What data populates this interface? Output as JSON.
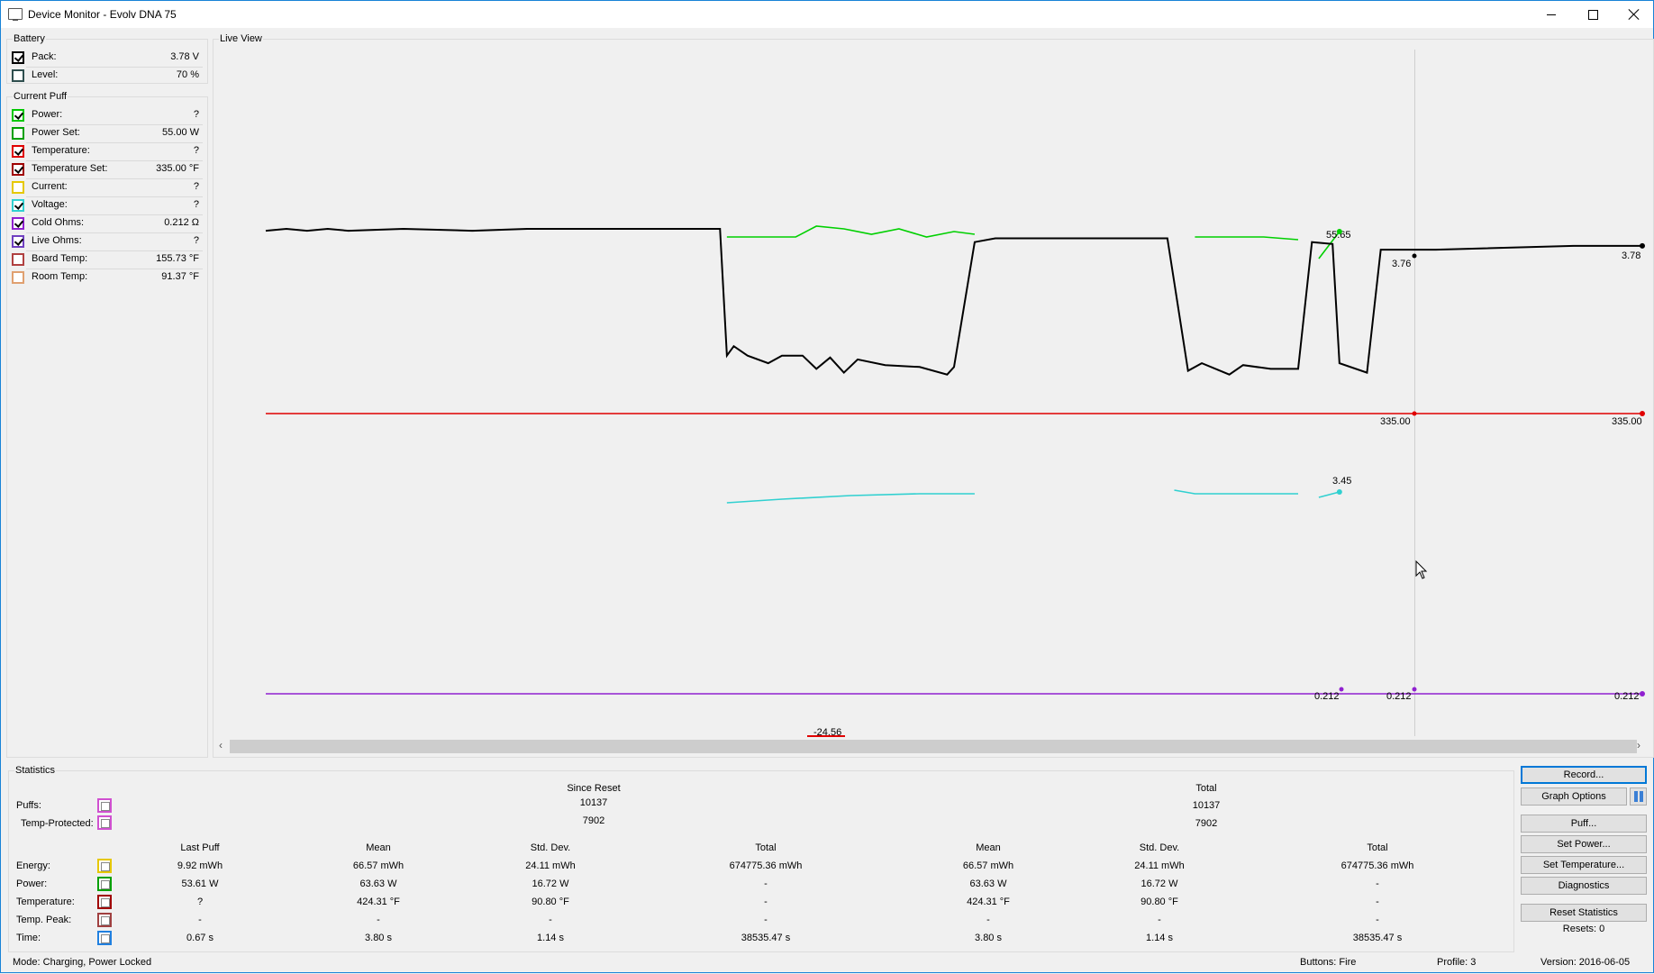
{
  "window": {
    "title": "Device Monitor - Evolv DNA 75"
  },
  "battery": {
    "legend": "Battery",
    "items": [
      {
        "label": "Pack:",
        "value": "3.78 V",
        "checked": true,
        "color": "#000000"
      },
      {
        "label": "Level:",
        "value": "70 %",
        "checked": false,
        "color": "#2f4f4f"
      }
    ]
  },
  "current_puff": {
    "legend": "Current Puff",
    "items": [
      {
        "label": "Power:",
        "value": "?",
        "checked": true,
        "color": "#00c800"
      },
      {
        "label": "Power Set:",
        "value": "55.00 W",
        "checked": false,
        "color": "#00a000"
      },
      {
        "label": "Temperature:",
        "value": "?",
        "checked": true,
        "color": "#e00000"
      },
      {
        "label": "Temperature Set:",
        "value": "335.00 °F",
        "checked": true,
        "color": "#a00000"
      },
      {
        "label": "Current:",
        "value": "?",
        "checked": false,
        "color": "#e6c800"
      },
      {
        "label": "Voltage:",
        "value": "?",
        "checked": true,
        "color": "#30d0d0"
      },
      {
        "label": "Cold Ohms:",
        "value": "0.212 Ω",
        "checked": true,
        "color": "#9020d0"
      },
      {
        "label": "Live Ohms:",
        "value": "?",
        "checked": true,
        "color": "#7040c0"
      },
      {
        "label": "Board Temp:",
        "value": "155.73 °F",
        "checked": false,
        "color": "#b04040"
      },
      {
        "label": "Room Temp:",
        "value": "91.37 °F",
        "checked": false,
        "color": "#e0a070"
      }
    ]
  },
  "live_view": {
    "legend": "Live View",
    "value_labels": [
      "55.65",
      "3.76",
      "3.78",
      "335.00",
      "335.00",
      "3.45",
      "0.212",
      "0.212",
      "0.212",
      "-24.56"
    ]
  },
  "chart_data": {
    "type": "line",
    "title": "",
    "series": [
      {
        "color": "#000000",
        "points": [
          [
            0,
            3.86
          ],
          [
            0.03,
            3.87
          ],
          [
            0.06,
            3.86
          ],
          [
            0.09,
            3.87
          ],
          [
            0.12,
            3.86
          ],
          [
            0.2,
            3.87
          ],
          [
            0.3,
            3.86
          ],
          [
            0.38,
            3.87
          ],
          [
            0.39,
            3.87
          ],
          [
            0.4,
            3.87
          ],
          [
            0.66,
            3.87
          ],
          [
            0.67,
            3.2
          ],
          [
            0.68,
            3.25
          ],
          [
            0.7,
            3.2
          ],
          [
            0.73,
            3.16
          ],
          [
            0.75,
            3.2
          ],
          [
            0.78,
            3.2
          ],
          [
            0.8,
            3.13
          ],
          [
            0.82,
            3.19
          ],
          [
            0.84,
            3.11
          ],
          [
            0.86,
            3.18
          ],
          [
            0.9,
            3.15
          ],
          [
            0.95,
            3.14
          ],
          [
            0.99,
            3.1
          ],
          [
            1.0,
            3.14
          ],
          [
            1.03,
            3.8
          ],
          [
            1.06,
            3.82
          ],
          [
            1.2,
            3.82
          ],
          [
            1.31,
            3.82
          ],
          [
            1.34,
            3.12
          ],
          [
            1.36,
            3.16
          ],
          [
            1.4,
            3.1
          ],
          [
            1.42,
            3.15
          ],
          [
            1.46,
            3.13
          ],
          [
            1.5,
            3.13
          ],
          [
            1.52,
            3.8
          ],
          [
            1.55,
            3.79
          ],
          [
            1.56,
            3.16
          ],
          [
            1.6,
            3.11
          ],
          [
            1.62,
            3.76
          ],
          [
            1.64,
            3.76
          ],
          [
            1.7,
            3.76
          ],
          [
            1.9,
            3.78
          ],
          [
            2.0,
            3.78
          ]
        ]
      },
      {
        "color": "#00d000",
        "segments": [
          [
            [
              0.67,
              3.86
            ],
            [
              0.72,
              3.86
            ],
            [
              0.77,
              3.86
            ],
            [
              0.8,
              3.9
            ],
            [
              0.84,
              3.89
            ],
            [
              0.88,
              3.87
            ],
            [
              0.92,
              3.89
            ],
            [
              0.96,
              3.86
            ],
            [
              1.0,
              3.88
            ],
            [
              1.03,
              3.87
            ]
          ],
          [
            [
              1.35,
              3.86
            ],
            [
              1.45,
              3.86
            ],
            [
              1.5,
              3.85
            ]
          ],
          [
            [
              1.53,
              3.78
            ],
            [
              1.56,
              3.88
            ]
          ]
        ]
      },
      {
        "color": "#e00000",
        "points": [
          [
            0,
            335
          ],
          [
            2.0,
            335
          ]
        ]
      },
      {
        "color": "#30d0d0",
        "segments": [
          [
            [
              0.67,
              3.03
            ],
            [
              0.75,
              3.05
            ],
            [
              0.85,
              3.07
            ],
            [
              0.95,
              3.08
            ],
            [
              1.03,
              3.08
            ]
          ],
          [
            [
              1.32,
              3.1
            ],
            [
              1.35,
              3.08
            ],
            [
              1.45,
              3.08
            ],
            [
              1.5,
              3.08
            ]
          ],
          [
            [
              1.53,
              3.06
            ],
            [
              1.56,
              3.09
            ]
          ]
        ]
      },
      {
        "color": "#9020d0",
        "points": [
          [
            0,
            0.212
          ],
          [
            0.67,
            0.212
          ],
          [
            0.75,
            0.212
          ],
          [
            1.0,
            0.212
          ],
          [
            1.5,
            0.212
          ],
          [
            2.0,
            0.212
          ]
        ]
      }
    ]
  },
  "statistics": {
    "legend": "Statistics",
    "since_reset_label": "Since Reset",
    "total_label": "Total",
    "puffs_label": "Puffs:",
    "temp_protected_label": "Temp-Protected:",
    "puffs_since": "10137",
    "temp_since": "7902",
    "puffs_total": "10137",
    "temp_total": "7902",
    "columns": [
      "Last Puff",
      "Mean",
      "Std. Dev.",
      "Total",
      "Mean",
      "Std. Dev.",
      "Total"
    ],
    "rows": [
      {
        "label": "Energy:",
        "color": "#e6c800",
        "values": [
          "9.92 mWh",
          "66.57 mWh",
          "24.11 mWh",
          "674775.36 mWh",
          "66.57 mWh",
          "24.11 mWh",
          "674775.36 mWh"
        ]
      },
      {
        "label": "Power:",
        "color": "#00a000",
        "values": [
          "53.61 W",
          "63.63 W",
          "16.72 W",
          "-",
          "63.63 W",
          "16.72 W",
          "-"
        ]
      },
      {
        "label": "Temperature:",
        "color": "#a00000",
        "values": [
          "?",
          "424.31 °F",
          "90.80 °F",
          "-",
          "424.31 °F",
          "90.80 °F",
          "-"
        ]
      },
      {
        "label": "Temp. Peak:",
        "color": "#a04040",
        "values": [
          "-",
          "-",
          "-",
          "-",
          "-",
          "-",
          "-"
        ]
      },
      {
        "label": "Time:",
        "color": "#2080e0",
        "values": [
          "0.67 s",
          "3.80 s",
          "1.14 s",
          "38535.47 s",
          "3.80 s",
          "1.14 s",
          "38535.47 s"
        ]
      }
    ]
  },
  "buttons": {
    "record": "Record...",
    "graph_options": "Graph Options",
    "puff": "Puff...",
    "set_power": "Set Power...",
    "set_temperature": "Set Temperature...",
    "diagnostics": "Diagnostics",
    "reset_statistics": "Reset Statistics",
    "resets": "Resets: 0"
  },
  "status": {
    "mode": "Mode: Charging, Power Locked",
    "buttons": "Buttons: Fire",
    "profile": "Profile: 3",
    "version": "Version: 2016-06-05"
  }
}
